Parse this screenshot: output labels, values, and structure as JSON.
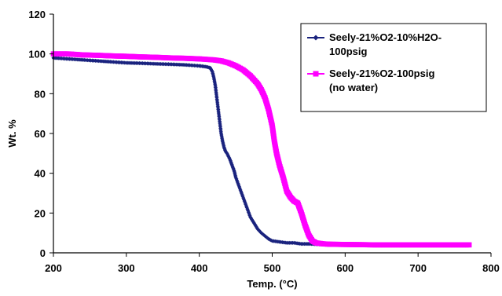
{
  "chart_data": {
    "type": "scatter",
    "title": "",
    "xlabel": "Temp. (°C)",
    "ylabel": "Wt. %",
    "xlim": [
      200,
      800
    ],
    "ylim": [
      0,
      120
    ],
    "x_ticks": [
      200,
      300,
      400,
      500,
      600,
      700,
      800
    ],
    "y_ticks": [
      0,
      20,
      40,
      60,
      80,
      100,
      120
    ],
    "grid": false,
    "legend_position": "top-right",
    "series": [
      {
        "name_lines": [
          "Seely-21%O2-10%H2O-",
          "100psig"
        ],
        "color": "#1a237e",
        "marker": "diamond",
        "points": [
          [
            200,
            98
          ],
          [
            220,
            97.5
          ],
          [
            240,
            97
          ],
          [
            260,
            96.5
          ],
          [
            280,
            96
          ],
          [
            300,
            95.5
          ],
          [
            320,
            95.3
          ],
          [
            340,
            95
          ],
          [
            360,
            94.8
          ],
          [
            380,
            94.5
          ],
          [
            400,
            94
          ],
          [
            410,
            93.5
          ],
          [
            415,
            93
          ],
          [
            418,
            91
          ],
          [
            420,
            88
          ],
          [
            422,
            84
          ],
          [
            424,
            78
          ],
          [
            426,
            72
          ],
          [
            428,
            66
          ],
          [
            430,
            60
          ],
          [
            432,
            56
          ],
          [
            434,
            53
          ],
          [
            436,
            51
          ],
          [
            438,
            50
          ],
          [
            440,
            48.5
          ],
          [
            442,
            47
          ],
          [
            444,
            45
          ],
          [
            446,
            43
          ],
          [
            448,
            41
          ],
          [
            450,
            38
          ],
          [
            454,
            34
          ],
          [
            458,
            30
          ],
          [
            462,
            26
          ],
          [
            466,
            22
          ],
          [
            470,
            18
          ],
          [
            475,
            15
          ],
          [
            480,
            12
          ],
          [
            485,
            10
          ],
          [
            490,
            8.5
          ],
          [
            495,
            7
          ],
          [
            500,
            6
          ],
          [
            510,
            5.5
          ],
          [
            520,
            5
          ],
          [
            530,
            5
          ],
          [
            540,
            4.5
          ],
          [
            550,
            4.5
          ],
          [
            560,
            4.3
          ],
          [
            580,
            4
          ],
          [
            600,
            4
          ],
          [
            620,
            4
          ],
          [
            640,
            4
          ],
          [
            660,
            4
          ],
          [
            680,
            4
          ],
          [
            700,
            4
          ],
          [
            710,
            4
          ]
        ]
      },
      {
        "name_lines": [
          "Seely-21%O2-100psig",
          "(no water)"
        ],
        "color": "#ff00ff",
        "marker": "square",
        "points": [
          [
            200,
            100
          ],
          [
            220,
            100
          ],
          [
            240,
            99.5
          ],
          [
            260,
            99.3
          ],
          [
            280,
            99
          ],
          [
            300,
            98.8
          ],
          [
            320,
            98.5
          ],
          [
            340,
            98.3
          ],
          [
            360,
            98
          ],
          [
            380,
            97.8
          ],
          [
            400,
            97.5
          ],
          [
            420,
            97
          ],
          [
            430,
            96.5
          ],
          [
            440,
            95.5
          ],
          [
            450,
            94
          ],
          [
            460,
            92
          ],
          [
            470,
            89
          ],
          [
            480,
            85
          ],
          [
            485,
            82
          ],
          [
            490,
            78
          ],
          [
            495,
            72
          ],
          [
            500,
            64
          ],
          [
            503,
            56
          ],
          [
            506,
            50
          ],
          [
            510,
            44
          ],
          [
            515,
            38
          ],
          [
            520,
            31
          ],
          [
            525,
            28
          ],
          [
            530,
            26
          ],
          [
            535,
            25
          ],
          [
            540,
            20
          ],
          [
            545,
            14
          ],
          [
            550,
            9
          ],
          [
            555,
            6
          ],
          [
            560,
            5
          ],
          [
            570,
            4.5
          ],
          [
            580,
            4.3
          ],
          [
            600,
            4.2
          ],
          [
            620,
            4.1
          ],
          [
            640,
            4
          ],
          [
            660,
            4
          ],
          [
            680,
            4
          ],
          [
            700,
            4
          ],
          [
            720,
            4
          ],
          [
            740,
            4
          ],
          [
            760,
            4
          ],
          [
            770,
            4
          ]
        ]
      }
    ]
  }
}
